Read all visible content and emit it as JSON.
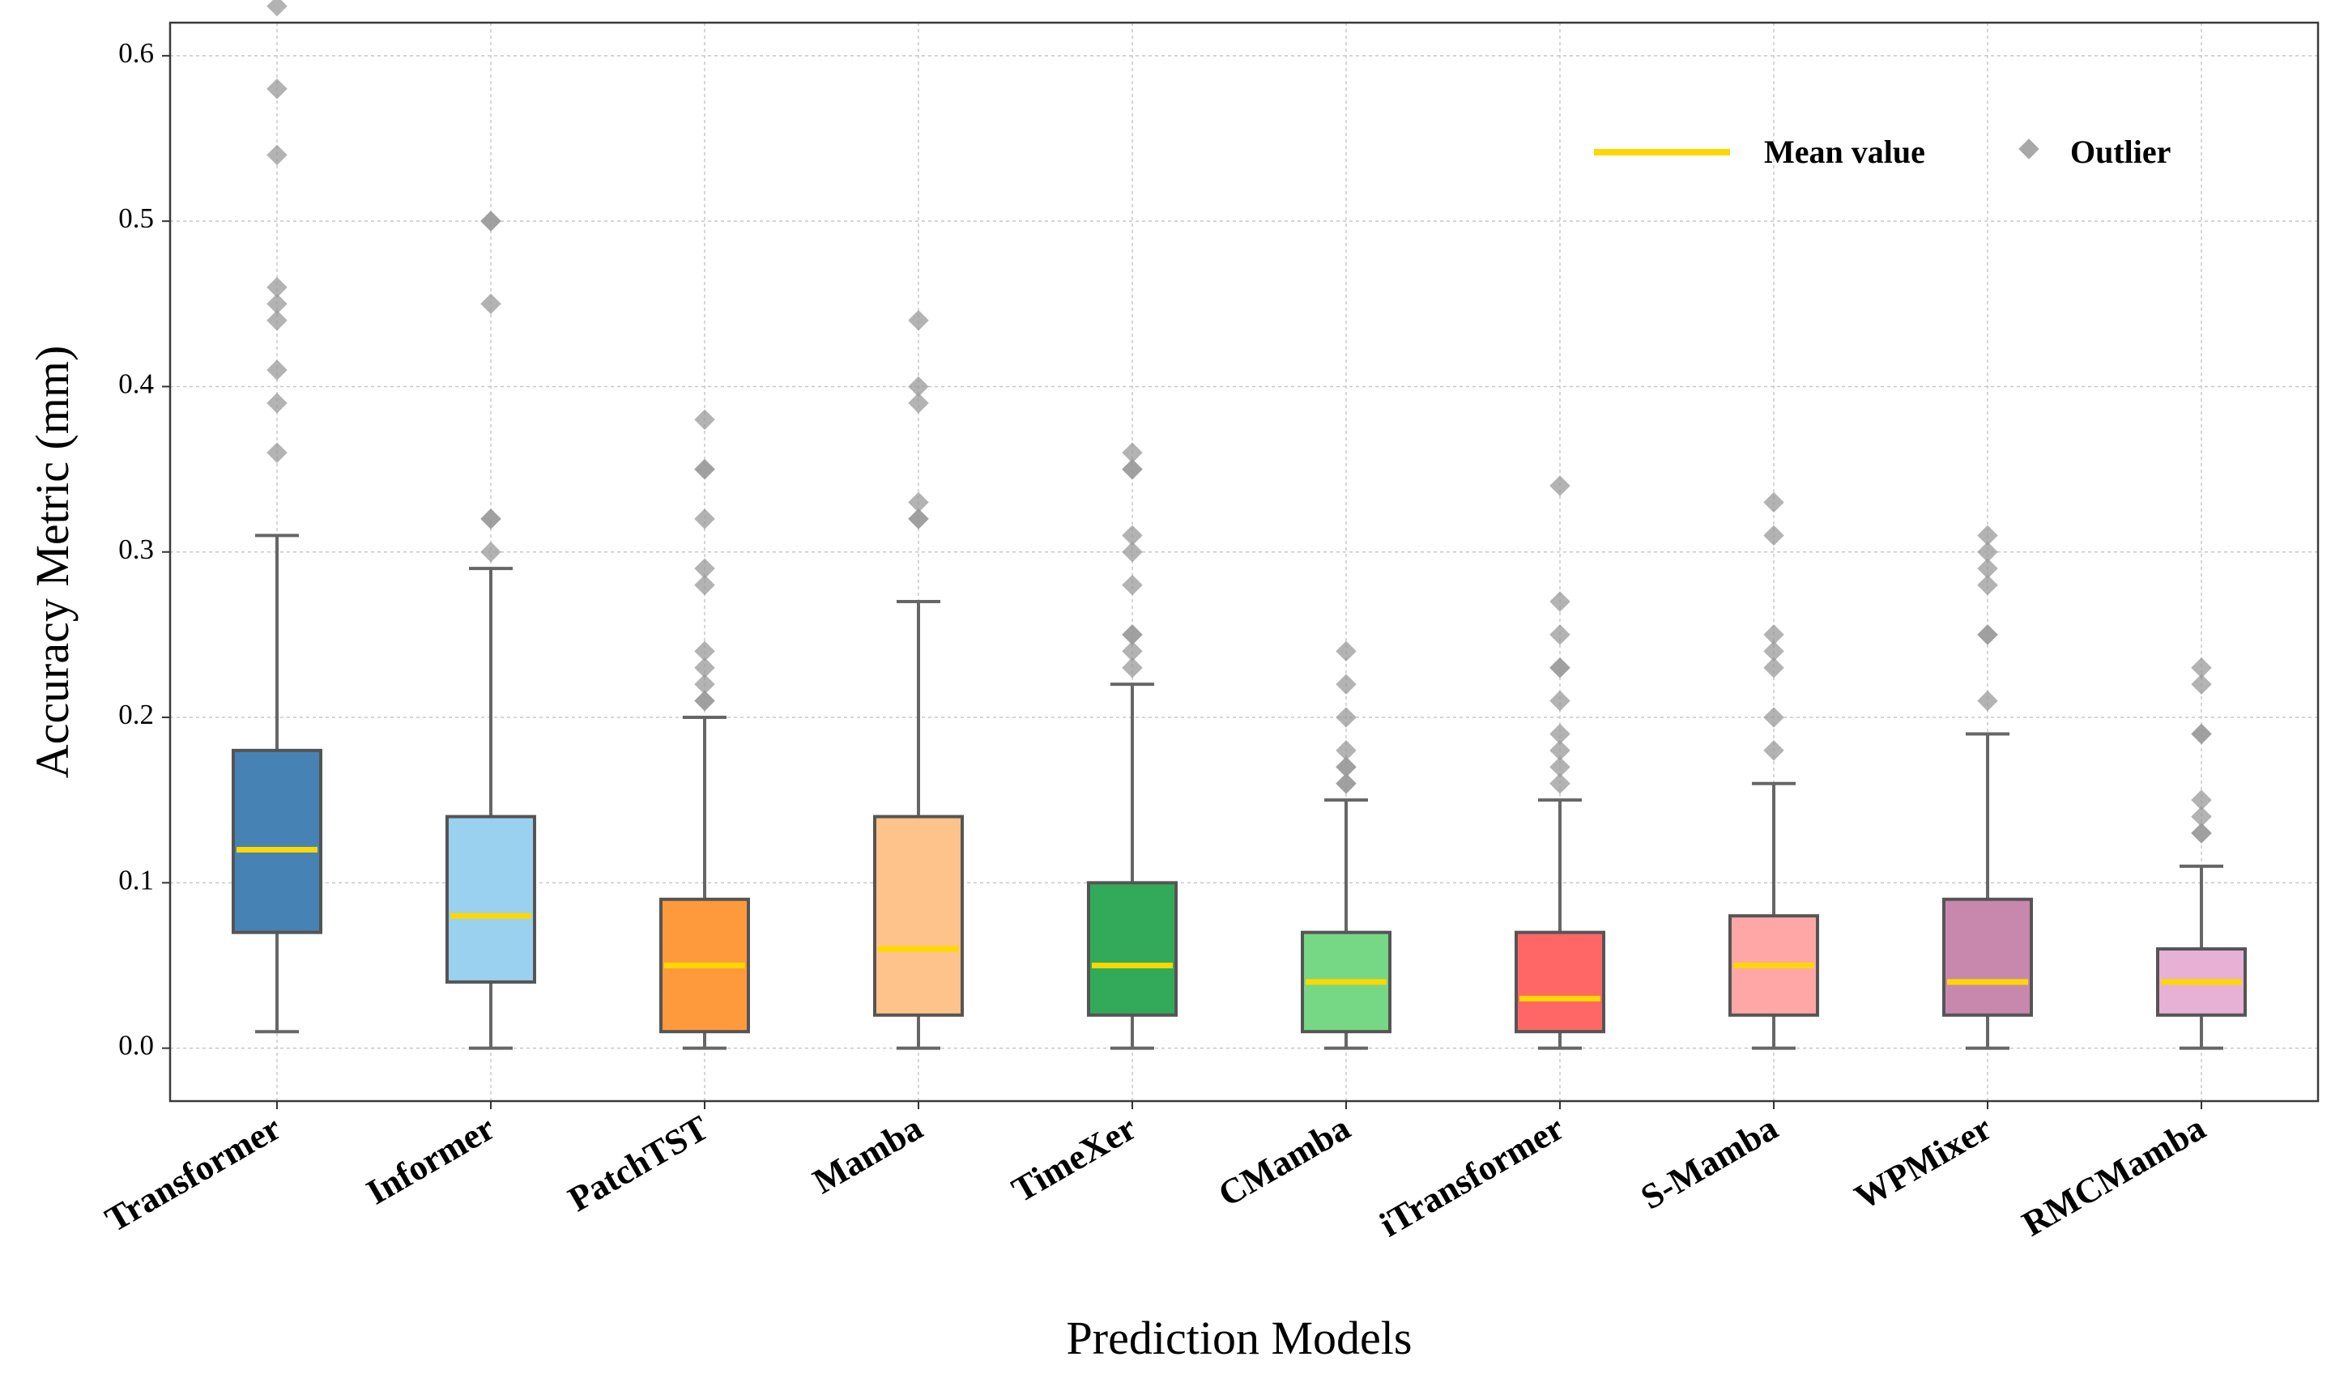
{
  "chart_data": {
    "type": "box",
    "xlabel": "Prediction Models",
    "ylabel": "Accuracy Metric (mm)",
    "ylim": [
      -0.032,
      0.62
    ],
    "yticks": [
      "0.0",
      "0.1",
      "0.2",
      "0.3",
      "0.4",
      "0.5",
      "0.6"
    ],
    "grid": true,
    "legend": {
      "position": "top-right",
      "mean_label": "Mean value",
      "outlier_label": "Outlier"
    },
    "colors": {
      "mean": "#FFD700",
      "outlier": "#999999",
      "box_edge": "#555555",
      "whisker": "#666666"
    },
    "categories": [
      "Transformer",
      "Informer",
      "PatchTST",
      "Mamba",
      "TimeXer",
      "CMamba",
      "iTransformer",
      "S-Mamba",
      "WPMixer",
      "RMCMamba"
    ],
    "series": [
      {
        "name": "Transformer",
        "color": "#4682B4",
        "whisker_low": 0.01,
        "q1": 0.07,
        "mean": 0.12,
        "q3": 0.18,
        "whisker_high": 0.31,
        "outliers": [
          0.36,
          0.39,
          0.41,
          0.44,
          0.45,
          0.46,
          0.54,
          0.58,
          0.63
        ]
      },
      {
        "name": "Informer",
        "color": "#99D1EE",
        "whisker_low": 0.0,
        "q1": 0.04,
        "mean": 0.08,
        "q3": 0.14,
        "whisker_high": 0.29,
        "outliers": [
          0.3,
          0.32,
          0.32,
          0.45,
          0.5,
          0.5
        ]
      },
      {
        "name": "PatchTST",
        "color": "#FE9A3C",
        "whisker_low": 0.0,
        "q1": 0.01,
        "mean": 0.05,
        "q3": 0.09,
        "whisker_high": 0.2,
        "outliers": [
          0.21,
          0.21,
          0.22,
          0.23,
          0.24,
          0.28,
          0.29,
          0.32,
          0.35,
          0.35,
          0.38
        ]
      },
      {
        "name": "Mamba",
        "color": "#FEC38A",
        "whisker_low": 0.0,
        "q1": 0.02,
        "mean": 0.06,
        "q3": 0.14,
        "whisker_high": 0.27,
        "outliers": [
          0.32,
          0.32,
          0.33,
          0.39,
          0.4,
          0.44
        ]
      },
      {
        "name": "TimeXer",
        "color": "#33AA5A",
        "whisker_low": 0.0,
        "q1": 0.02,
        "mean": 0.05,
        "q3": 0.1,
        "whisker_high": 0.22,
        "outliers": [
          0.23,
          0.24,
          0.25,
          0.25,
          0.28,
          0.3,
          0.31,
          0.35,
          0.35,
          0.36
        ]
      },
      {
        "name": "CMamba",
        "color": "#76D884",
        "whisker_low": 0.0,
        "q1": 0.01,
        "mean": 0.04,
        "q3": 0.07,
        "whisker_high": 0.15,
        "outliers": [
          0.16,
          0.16,
          0.17,
          0.17,
          0.18,
          0.2,
          0.22,
          0.24
        ]
      },
      {
        "name": "iTransformer",
        "color": "#FF6767",
        "whisker_low": 0.0,
        "q1": 0.01,
        "mean": 0.03,
        "q3": 0.07,
        "whisker_high": 0.15,
        "outliers": [
          0.16,
          0.17,
          0.18,
          0.19,
          0.21,
          0.23,
          0.23,
          0.25,
          0.27,
          0.34
        ]
      },
      {
        "name": "S-Mamba",
        "color": "#FFA7A6",
        "whisker_low": 0.0,
        "q1": 0.02,
        "mean": 0.05,
        "q3": 0.08,
        "whisker_high": 0.16,
        "outliers": [
          0.18,
          0.2,
          0.23,
          0.24,
          0.25,
          0.31,
          0.33
        ]
      },
      {
        "name": "WPMixer",
        "color": "#C888AE",
        "whisker_low": 0.0,
        "q1": 0.02,
        "mean": 0.04,
        "q3": 0.09,
        "whisker_high": 0.19,
        "outliers": [
          0.21,
          0.25,
          0.25,
          0.28,
          0.29,
          0.3,
          0.31
        ]
      },
      {
        "name": "RMCMamba",
        "color": "#E7B1D5",
        "whisker_low": 0.0,
        "q1": 0.02,
        "mean": 0.04,
        "q3": 0.06,
        "whisker_high": 0.11,
        "outliers": [
          0.13,
          0.13,
          0.14,
          0.15,
          0.19,
          0.19,
          0.22,
          0.23
        ]
      }
    ]
  }
}
